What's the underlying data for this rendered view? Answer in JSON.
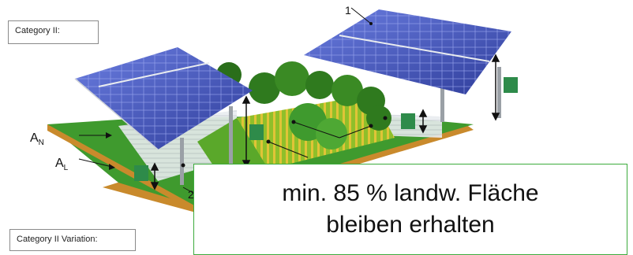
{
  "labels": {
    "category": "Category II:",
    "category_variation": "Category II Variation:"
  },
  "callout": {
    "line1": "min. 85 % landw. Fläche",
    "line2": "bleiben erhalten"
  },
  "markers": {
    "marker_1": "1",
    "marker_2": "2"
  },
  "dimensions": {
    "a_n": "A",
    "a_n_sub": "N",
    "a_l": "A",
    "a_l_sub": "L"
  },
  "colors": {
    "panel": "#4a5cc8",
    "panel_dark": "#2f3d9a",
    "grass": "#3f9a2e",
    "soil": "#c98a2c",
    "callout_border": "#3cab3c"
  }
}
